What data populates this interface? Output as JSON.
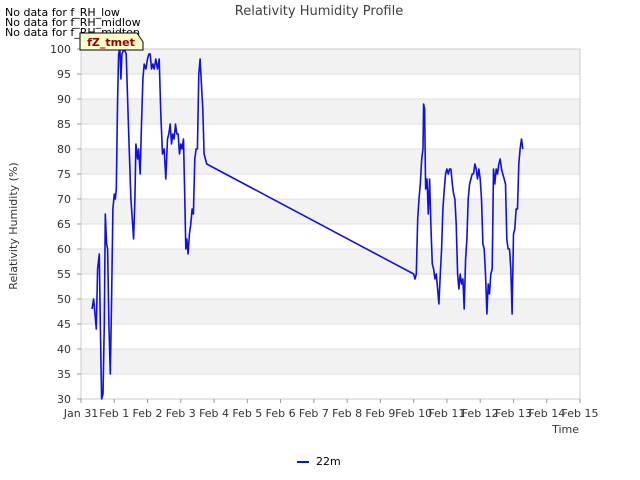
{
  "notes": [
    "No data for f_RH_low",
    "No data for f_RH_midlow",
    "No data for f_RH_midtop"
  ],
  "badge": {
    "label": "fZ_tmet",
    "color": "#990000",
    "background": "#ffffcc"
  },
  "chart_data": {
    "type": "line",
    "title": "Relativity Humidity Profile",
    "xlabel": "Time",
    "ylabel": "Relativity Humidity (%)",
    "xlim": [
      0,
      15
    ],
    "ylim": [
      30,
      100
    ],
    "x_ticks": [
      {
        "v": 0,
        "label": "Jan 31"
      },
      {
        "v": 1,
        "label": "Feb 1"
      },
      {
        "v": 2,
        "label": "Feb 2"
      },
      {
        "v": 3,
        "label": "Feb 3"
      },
      {
        "v": 4,
        "label": "Feb 4"
      },
      {
        "v": 5,
        "label": "Feb 5"
      },
      {
        "v": 6,
        "label": "Feb 6"
      },
      {
        "v": 7,
        "label": "Feb 7"
      },
      {
        "v": 8,
        "label": "Feb 8"
      },
      {
        "v": 9,
        "label": "Feb 9"
      },
      {
        "v": 10,
        "label": "Feb 10"
      },
      {
        "v": 11,
        "label": "Feb 11"
      },
      {
        "v": 12,
        "label": "Feb 12"
      },
      {
        "v": 13,
        "label": "Feb 13"
      },
      {
        "v": 14,
        "label": "Feb 14"
      },
      {
        "v": 15,
        "label": "Feb 15"
      }
    ],
    "y_ticks": [
      30,
      35,
      40,
      45,
      50,
      55,
      60,
      65,
      70,
      75,
      80,
      85,
      90,
      95,
      100
    ],
    "grid": true,
    "legend_position": "bottom-center",
    "series": [
      {
        "name": "22m",
        "color": "#1010e0",
        "points": [
          [
            0.33,
            48
          ],
          [
            0.38,
            50
          ],
          [
            0.42,
            47
          ],
          [
            0.46,
            44
          ],
          [
            0.5,
            56
          ],
          [
            0.55,
            59
          ],
          [
            0.58,
            45
          ],
          [
            0.62,
            30
          ],
          [
            0.66,
            31
          ],
          [
            0.7,
            45
          ],
          [
            0.73,
            67
          ],
          [
            0.77,
            61
          ],
          [
            0.8,
            60
          ],
          [
            0.84,
            45
          ],
          [
            0.88,
            35
          ],
          [
            0.92,
            50
          ],
          [
            0.96,
            68
          ],
          [
            1.0,
            71
          ],
          [
            1.03,
            70
          ],
          [
            1.06,
            72
          ],
          [
            1.1,
            90
          ],
          [
            1.13,
            99
          ],
          [
            1.17,
            100
          ],
          [
            1.2,
            94
          ],
          [
            1.23,
            99
          ],
          [
            1.3,
            100
          ],
          [
            1.36,
            99
          ],
          [
            1.4,
            90
          ],
          [
            1.45,
            80
          ],
          [
            1.5,
            70
          ],
          [
            1.55,
            65
          ],
          [
            1.58,
            62
          ],
          [
            1.62,
            70
          ],
          [
            1.65,
            81
          ],
          [
            1.7,
            78
          ],
          [
            1.73,
            80
          ],
          [
            1.78,
            75
          ],
          [
            1.82,
            85
          ],
          [
            1.86,
            94
          ],
          [
            1.9,
            97
          ],
          [
            1.95,
            96
          ],
          [
            2.0,
            98
          ],
          [
            2.04,
            99
          ],
          [
            2.08,
            99
          ],
          [
            2.12,
            96
          ],
          [
            2.16,
            97
          ],
          [
            2.2,
            96
          ],
          [
            2.25,
            98
          ],
          [
            2.3,
            96
          ],
          [
            2.35,
            98
          ],
          [
            2.4,
            87
          ],
          [
            2.45,
            79
          ],
          [
            2.5,
            80
          ],
          [
            2.55,
            74
          ],
          [
            2.6,
            82
          ],
          [
            2.64,
            83
          ],
          [
            2.68,
            85
          ],
          [
            2.72,
            81
          ],
          [
            2.76,
            83
          ],
          [
            2.8,
            82
          ],
          [
            2.84,
            85
          ],
          [
            2.88,
            83
          ],
          [
            2.92,
            83
          ],
          [
            2.96,
            79
          ],
          [
            3.0,
            81
          ],
          [
            3.04,
            80
          ],
          [
            3.08,
            82
          ],
          [
            3.12,
            70
          ],
          [
            3.15,
            60
          ],
          [
            3.18,
            62
          ],
          [
            3.22,
            59
          ],
          [
            3.26,
            63
          ],
          [
            3.3,
            65
          ],
          [
            3.34,
            68
          ],
          [
            3.38,
            67
          ],
          [
            3.42,
            78
          ],
          [
            3.46,
            80
          ],
          [
            3.5,
            80
          ],
          [
            3.54,
            95
          ],
          [
            3.58,
            98
          ],
          [
            3.62,
            93
          ],
          [
            3.66,
            88
          ],
          [
            3.7,
            79
          ],
          [
            3.74,
            78
          ],
          [
            3.78,
            77
          ],
          [
            10.0,
            55
          ],
          [
            10.04,
            54
          ],
          [
            10.08,
            55
          ],
          [
            10.12,
            66
          ],
          [
            10.16,
            70
          ],
          [
            10.2,
            73
          ],
          [
            10.24,
            78
          ],
          [
            10.28,
            80
          ],
          [
            10.3,
            89
          ],
          [
            10.33,
            88
          ],
          [
            10.36,
            72
          ],
          [
            10.4,
            74
          ],
          [
            10.44,
            67
          ],
          [
            10.48,
            74
          ],
          [
            10.52,
            64
          ],
          [
            10.56,
            57
          ],
          [
            10.6,
            56
          ],
          [
            10.64,
            54
          ],
          [
            10.68,
            55
          ],
          [
            10.72,
            52
          ],
          [
            10.76,
            49
          ],
          [
            10.8,
            55
          ],
          [
            10.84,
            60
          ],
          [
            10.88,
            68
          ],
          [
            10.92,
            72
          ],
          [
            10.96,
            75
          ],
          [
            11.0,
            76
          ],
          [
            11.04,
            75
          ],
          [
            11.08,
            76
          ],
          [
            11.12,
            76
          ],
          [
            11.16,
            73
          ],
          [
            11.2,
            71
          ],
          [
            11.24,
            70
          ],
          [
            11.28,
            65
          ],
          [
            11.32,
            55
          ],
          [
            11.36,
            52
          ],
          [
            11.4,
            55
          ],
          [
            11.44,
            53
          ],
          [
            11.48,
            54
          ],
          [
            11.52,
            48
          ],
          [
            11.56,
            58
          ],
          [
            11.6,
            62
          ],
          [
            11.64,
            70
          ],
          [
            11.68,
            73
          ],
          [
            11.72,
            74
          ],
          [
            11.76,
            75
          ],
          [
            11.8,
            75
          ],
          [
            11.84,
            77
          ],
          [
            11.88,
            76
          ],
          [
            11.92,
            74
          ],
          [
            11.96,
            76
          ],
          [
            12.0,
            74
          ],
          [
            12.04,
            70
          ],
          [
            12.08,
            61
          ],
          [
            12.12,
            60
          ],
          [
            12.16,
            55
          ],
          [
            12.2,
            47
          ],
          [
            12.24,
            53
          ],
          [
            12.28,
            51
          ],
          [
            12.32,
            55
          ],
          [
            12.36,
            56
          ],
          [
            12.4,
            76
          ],
          [
            12.44,
            73
          ],
          [
            12.48,
            76
          ],
          [
            12.52,
            75
          ],
          [
            12.56,
            77
          ],
          [
            12.6,
            78
          ],
          [
            12.64,
            76
          ],
          [
            12.68,
            75
          ],
          [
            12.72,
            74
          ],
          [
            12.76,
            73
          ],
          [
            12.8,
            62
          ],
          [
            12.84,
            60
          ],
          [
            12.88,
            60
          ],
          [
            12.92,
            56
          ],
          [
            12.96,
            47
          ],
          [
            13.0,
            63
          ],
          [
            13.04,
            64
          ],
          [
            13.08,
            68
          ],
          [
            13.12,
            68
          ],
          [
            13.16,
            77
          ],
          [
            13.2,
            80
          ],
          [
            13.24,
            82
          ],
          [
            13.28,
            80
          ]
        ]
      }
    ]
  }
}
